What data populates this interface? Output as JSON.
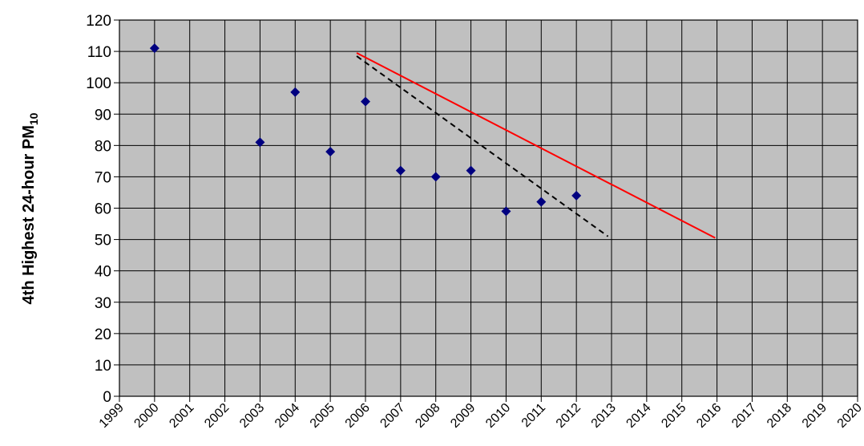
{
  "chart_data": {
    "type": "scatter",
    "title": "",
    "xlabel": "",
    "ylabel": "4th Highest 24-hour PM",
    "ylabel_subscript": "10",
    "xlim": [
      1999,
      2020
    ],
    "ylim": [
      0,
      120
    ],
    "x_ticks": [
      "1999",
      "2000",
      "2001",
      "2002",
      "2003",
      "2004",
      "2005",
      "2006",
      "2007",
      "2008",
      "2009",
      "2010",
      "2011",
      "2012",
      "2013",
      "2014",
      "2015",
      "2016",
      "2017",
      "2018",
      "2019",
      "2020"
    ],
    "y_ticks": [
      "0",
      "10",
      "20",
      "30",
      "40",
      "50",
      "60",
      "70",
      "80",
      "90",
      "100",
      "110",
      "120"
    ],
    "grid": true,
    "plot_background": "#c0c0c0",
    "series": [
      {
        "kind": "scatter",
        "marker": "diamond",
        "color": "#000080",
        "points": [
          {
            "x": 2000,
            "y": 111
          },
          {
            "x": 2003,
            "y": 81
          },
          {
            "x": 2004,
            "y": 97
          },
          {
            "x": 2005,
            "y": 78
          },
          {
            "x": 2006,
            "y": 94
          },
          {
            "x": 2007,
            "y": 72
          },
          {
            "x": 2008,
            "y": 70
          },
          {
            "x": 2009,
            "y": 72
          },
          {
            "x": 2010,
            "y": 59
          },
          {
            "x": 2011,
            "y": 62
          },
          {
            "x": 2012,
            "y": 64
          }
        ]
      },
      {
        "kind": "line",
        "style": "solid",
        "color": "#ff0000",
        "points": [
          {
            "x": 2005.75,
            "y": 109.5
          },
          {
            "x": 2015.95,
            "y": 50.5
          }
        ]
      },
      {
        "kind": "line",
        "style": "dashed",
        "color": "#000000",
        "points": [
          {
            "x": 2005.75,
            "y": 108.5
          },
          {
            "x": 2012.9,
            "y": 51
          }
        ]
      }
    ]
  }
}
